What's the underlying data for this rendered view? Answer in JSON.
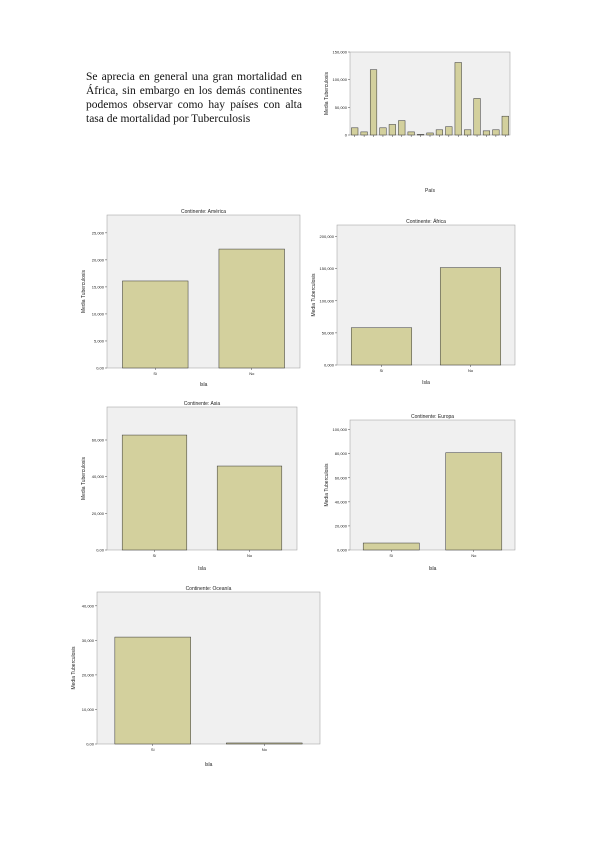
{
  "paragraph": "Se aprecia en general una gran mortalidad en África, sin embargo en los demás continentes podemos observar como hay países con alta tasa de mortalidad por Tuberculosis",
  "chart_data": [
    {
      "type": "bar",
      "ylabel": "Media Tuberculosis",
      "xlabel": "País",
      "categories": [
        null,
        null,
        null,
        null,
        null,
        null,
        null,
        null,
        null,
        null,
        null,
        null,
        null,
        null,
        null,
        null,
        null
      ],
      "values": [
        13000,
        5600,
        118000,
        13000,
        19000,
        26000,
        5600,
        1000,
        3700,
        9400,
        15000,
        131000,
        9400,
        66000,
        7500,
        9400,
        34000
      ],
      "ylim": [
        0,
        150000
      ],
      "yticks": [
        0,
        {
          "value": 50000,
          "label": "50,000"
        },
        {
          "value": 100000,
          "label": "100,000"
        },
        {
          "value": 150000,
          "label": "150,000"
        }
      ],
      "color": "#d3d09d"
    },
    {
      "type": "bar",
      "title": "Continente: América",
      "ylabel": "Media Tuberculosis",
      "xlabel": "Isla",
      "categories": [
        "Sí",
        "No"
      ],
      "values": [
        16100,
        22000
      ],
      "ylim": [
        0,
        28300
      ],
      "yticks": [
        {
          "value": 0,
          "label": "0,00"
        },
        {
          "value": 5000,
          "label": "5,000"
        },
        {
          "value": 10000,
          "label": "10,000"
        },
        {
          "value": 15000,
          "label": "15,000"
        },
        {
          "value": 20000,
          "label": "20,000"
        },
        {
          "value": 25000,
          "label": "25,000"
        }
      ],
      "color": "#d3d09d"
    },
    {
      "type": "bar",
      "title": "Continente: África",
      "ylabel": "Media Tuberculosis",
      "xlabel": "Isla",
      "categories": [
        "Sí",
        "No"
      ],
      "values": [
        58000,
        151600
      ],
      "ylim": [
        0,
        218000
      ],
      "yticks": [
        {
          "value": 0,
          "label": "0,000"
        },
        {
          "value": 50000,
          "label": "50,000"
        },
        {
          "value": 100000,
          "label": "100,000"
        },
        {
          "value": 150000,
          "label": "150,000"
        },
        {
          "value": 200000,
          "label": "200,000"
        }
      ],
      "color": "#d3d09d"
    },
    {
      "type": "bar",
      "title": "Continente: Asia",
      "ylabel": "Media Tuberculosis",
      "xlabel": "Isla",
      "categories": [
        "Sí",
        "No"
      ],
      "values": [
        62700,
        45800
      ],
      "ylim": [
        0,
        78000
      ],
      "yticks": [
        {
          "value": 0,
          "label": "0,00"
        },
        {
          "value": 20000,
          "label": "20,000"
        },
        {
          "value": 40000,
          "label": "40,000"
        },
        {
          "value": 60000,
          "label": "60,000"
        }
      ],
      "color": "#d3d09d"
    },
    {
      "type": "bar",
      "title": "Continente: Europa",
      "ylabel": "Media Tuberculosis",
      "xlabel": "Isla",
      "categories": [
        "Sí",
        "No"
      ],
      "values": [
        5800,
        80800
      ],
      "ylim": [
        0,
        108000
      ],
      "yticks": [
        {
          "value": 0,
          "label": "0,000"
        },
        {
          "value": 20000,
          "label": "20,000"
        },
        {
          "value": 40000,
          "label": "40,000"
        },
        {
          "value": 60000,
          "label": "60,000"
        },
        {
          "value": 80000,
          "label": "80,000"
        },
        {
          "value": 100000,
          "label": "100,000"
        }
      ],
      "color": "#d3d09d"
    },
    {
      "type": "bar",
      "title": "Continente: Oceanía",
      "ylabel": "Media Tuberculosis",
      "xlabel": "Isla",
      "categories": [
        "Sí",
        "No"
      ],
      "values": [
        30950,
        300
      ],
      "ylim": [
        0,
        44000
      ],
      "yticks": [
        {
          "value": 0,
          "label": "0,00"
        },
        {
          "value": 10000,
          "label": "10,000"
        },
        {
          "value": 20000,
          "label": "20,000"
        },
        {
          "value": 30000,
          "label": "30,000"
        },
        {
          "value": 40000,
          "label": "40,000"
        }
      ],
      "color": "#d3d09d"
    }
  ]
}
